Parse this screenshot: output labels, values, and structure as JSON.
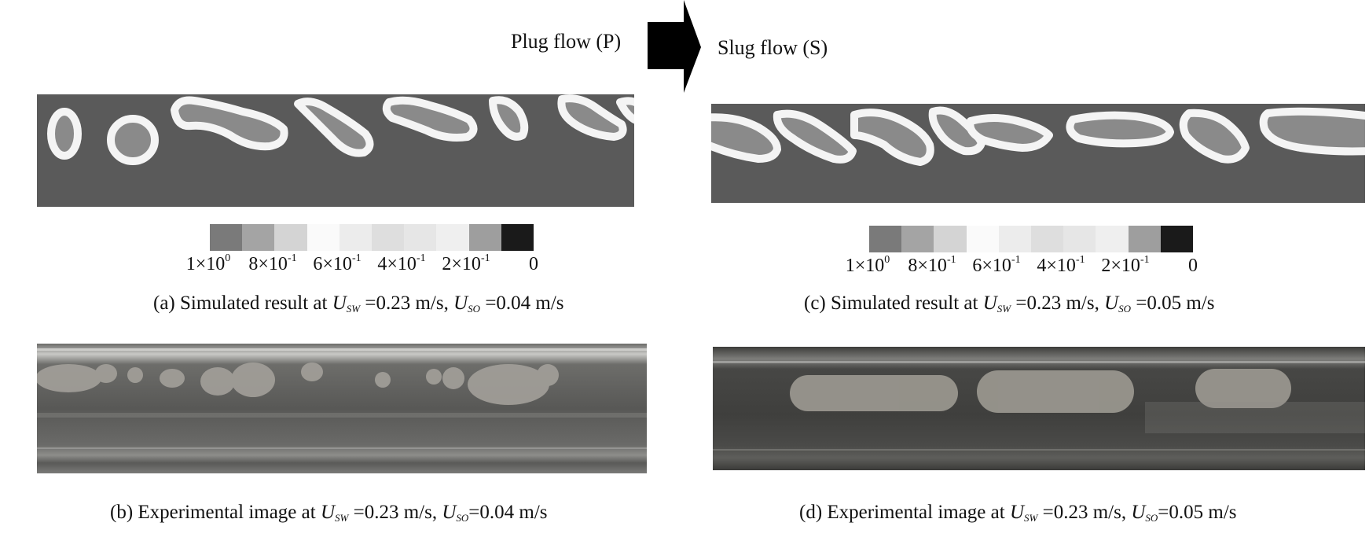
{
  "arrow": {
    "from_label": "Plug flow (P)",
    "to_label": "Slug flow (S)"
  },
  "legend": {
    "swatches": [
      "#7a7a7a",
      "#a4a4a4",
      "#d4d4d4",
      "#fafafa",
      "#ececec",
      "#dedede",
      "#e6e6e6",
      "#efefef",
      "#9e9e9e",
      "#1a1a1a"
    ],
    "tick_labels": [
      {
        "mant": "1×10",
        "exp": "0"
      },
      {
        "mant": "8×10",
        "exp": "-1"
      },
      {
        "mant": "6×10",
        "exp": "-1"
      },
      {
        "mant": "4×10",
        "exp": "-1"
      },
      {
        "mant": "2×10",
        "exp": "-1"
      },
      {
        "mant": "0",
        "exp": ""
      }
    ]
  },
  "panels": {
    "a": {
      "caption_prefix": "(a) Simulated result at ",
      "u1": "U",
      "s1": "SW",
      "v1": " =0.23 m/s, ",
      "u2": "U",
      "s2": "SO",
      "v2": " =0.04 m/s"
    },
    "b": {
      "caption_prefix": "(b) Experimental image at ",
      "u1": "U",
      "s1": "SW",
      "v1": " =0.23 m/s, ",
      "u2": "U",
      "s2": "SO",
      "v2": "=0.04 m/s"
    },
    "c": {
      "caption_prefix": "(c) Simulated result at ",
      "u1": "U",
      "s1": "SW",
      "v1": " =0.23 m/s, ",
      "u2": "U",
      "s2": "SO",
      "v2": " =0.05 m/s"
    },
    "d": {
      "caption_prefix": "(d) Experimental image at ",
      "u1": "U",
      "s1": "SW",
      "v1": " =0.23 m/s, ",
      "u2": "U",
      "s2": "SO",
      "v2": "=0.05 m/s"
    }
  },
  "colors": {
    "sim_bg": "#5a5a5a",
    "droplet_fill": "#8a8a8a",
    "droplet_rim": "#f2f2f2",
    "photo_bg": "#4d4d4b"
  }
}
